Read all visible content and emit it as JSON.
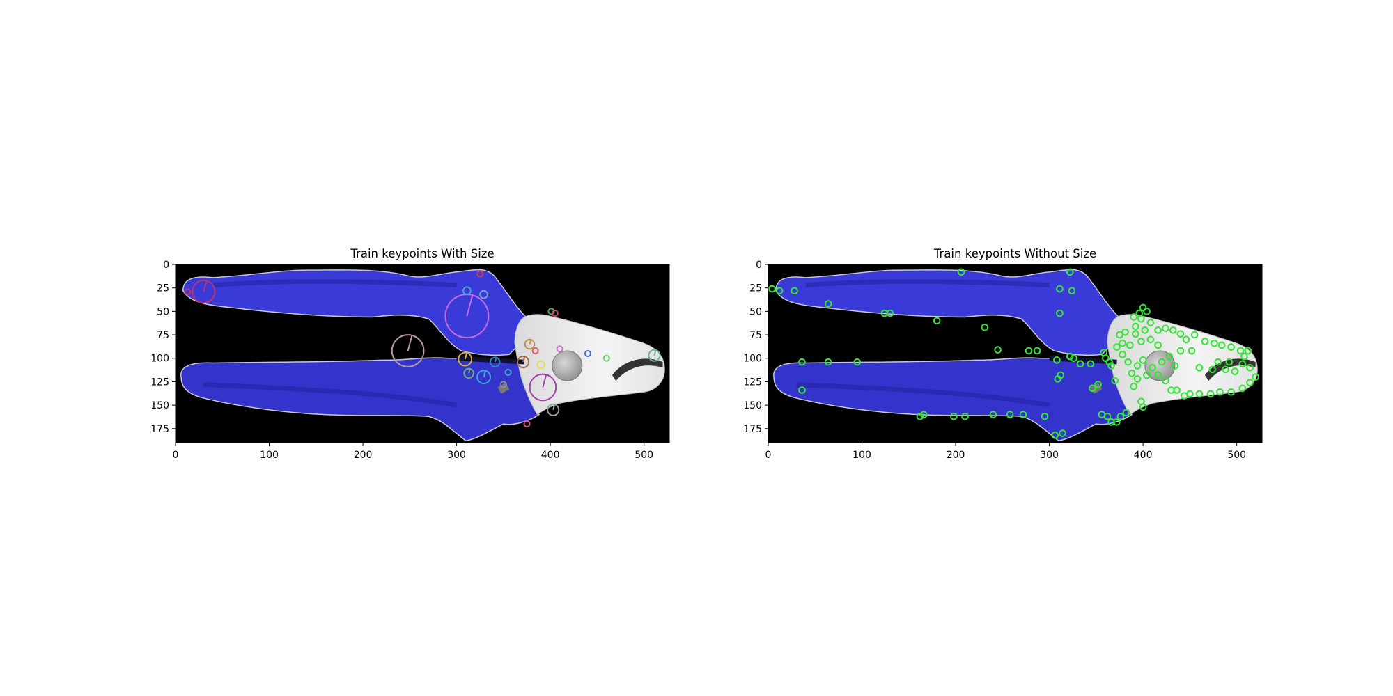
{
  "chart_data": [
    {
      "type": "image",
      "title": "Train keypoints With Size",
      "xlim": [
        0,
        527
      ],
      "ylim": [
        190,
        0
      ],
      "x_ticks": [
        0,
        100,
        200,
        300,
        400,
        500
      ],
      "y_ticks": [
        0,
        25,
        50,
        75,
        100,
        125,
        150,
        175
      ],
      "keypoint_style": "rich (size + orientation)",
      "keypoints": [
        {
          "x": 30,
          "y": 29,
          "r": 12,
          "color": "#c0306a"
        },
        {
          "x": 13,
          "y": 29,
          "r": 3,
          "color": "#c0306a"
        },
        {
          "x": 311,
          "y": 55,
          "r": 23,
          "color": "#c86be6"
        },
        {
          "x": 329,
          "y": 32,
          "r": 4,
          "color": "#7aa0c8"
        },
        {
          "x": 311,
          "y": 28,
          "r": 4,
          "color": "#4aa0d0"
        },
        {
          "x": 325,
          "y": 10,
          "r": 3,
          "color": "#d04040"
        },
        {
          "x": 248,
          "y": 92,
          "r": 17,
          "color": "#b89898"
        },
        {
          "x": 309,
          "y": 101,
          "r": 7,
          "color": "#d8b040"
        },
        {
          "x": 341,
          "y": 104,
          "r": 5,
          "color": "#3080c8"
        },
        {
          "x": 313,
          "y": 116,
          "r": 5,
          "color": "#70b070"
        },
        {
          "x": 329,
          "y": 120,
          "r": 7,
          "color": "#40a8e0"
        },
        {
          "x": 392,
          "y": 131,
          "r": 14,
          "color": "#a040a8"
        },
        {
          "x": 403,
          "y": 155,
          "r": 6,
          "color": "#90a8a0"
        },
        {
          "x": 378,
          "y": 85,
          "r": 5,
          "color": "#c89050"
        },
        {
          "x": 371,
          "y": 104,
          "r": 6,
          "color": "#a07040"
        },
        {
          "x": 390,
          "y": 107,
          "r": 4,
          "color": "#e0e060"
        },
        {
          "x": 511,
          "y": 97,
          "r": 6,
          "color": "#70b0a0"
        },
        {
          "x": 384,
          "y": 92,
          "r": 3,
          "color": "#e06060"
        },
        {
          "x": 401,
          "y": 50,
          "r": 3,
          "color": "#60a060"
        },
        {
          "x": 405,
          "y": 52,
          "r": 3,
          "color": "#d04060"
        },
        {
          "x": 355,
          "y": 115,
          "r": 3,
          "color": "#40a0d0"
        },
        {
          "x": 410,
          "y": 90,
          "r": 3,
          "color": "#d070d0"
        },
        {
          "x": 440,
          "y": 95,
          "r": 3,
          "color": "#4070d0"
        },
        {
          "x": 460,
          "y": 100,
          "r": 3,
          "color": "#70d070"
        },
        {
          "x": 375,
          "y": 170,
          "r": 3,
          "color": "#d05090"
        },
        {
          "x": 350,
          "y": 128,
          "r": 3,
          "color": "#909090"
        }
      ]
    },
    {
      "type": "image",
      "title": "Train keypoints Without Size",
      "xlim": [
        0,
        527
      ],
      "ylim": [
        190,
        0
      ],
      "x_ticks": [
        0,
        100,
        200,
        300,
        400,
        500
      ],
      "y_ticks": [
        0,
        25,
        50,
        75,
        100,
        125,
        150,
        175
      ],
      "keypoint_style": "fixed-size circles",
      "keypoint_color": "#33e633",
      "keypoints": [
        [
          4,
          26
        ],
        [
          12,
          28
        ],
        [
          28,
          28
        ],
        [
          64,
          42
        ],
        [
          36,
          104
        ],
        [
          36,
          134
        ],
        [
          64,
          104
        ],
        [
          95,
          104
        ],
        [
          124,
          52
        ],
        [
          130,
          52
        ],
        [
          180,
          60
        ],
        [
          206,
          8
        ],
        [
          231,
          67
        ],
        [
          245,
          91
        ],
        [
          278,
          92
        ],
        [
          287,
          92
        ],
        [
          308,
          102
        ],
        [
          312,
          118
        ],
        [
          309,
          122
        ],
        [
          311,
          52
        ],
        [
          311,
          26
        ],
        [
          324,
          28
        ],
        [
          322,
          8
        ],
        [
          322,
          98
        ],
        [
          326,
          100
        ],
        [
          333,
          106
        ],
        [
          344,
          106
        ],
        [
          358,
          94
        ],
        [
          366,
          108
        ],
        [
          346,
          132
        ],
        [
          352,
          128
        ],
        [
          370,
          124
        ],
        [
          306,
          182
        ],
        [
          314,
          180
        ],
        [
          295,
          162
        ],
        [
          272,
          160
        ],
        [
          258,
          160
        ],
        [
          240,
          160
        ],
        [
          210,
          162
        ],
        [
          198,
          162
        ],
        [
          166,
          160
        ],
        [
          162,
          162
        ],
        [
          372,
          88
        ],
        [
          378,
          84
        ],
        [
          375,
          75
        ],
        [
          381,
          72
        ],
        [
          392,
          66
        ],
        [
          390,
          56
        ],
        [
          396,
          52
        ],
        [
          400,
          46
        ],
        [
          404,
          50
        ],
        [
          398,
          58
        ],
        [
          408,
          62
        ],
        [
          402,
          70
        ],
        [
          416,
          70
        ],
        [
          424,
          68
        ],
        [
          432,
          70
        ],
        [
          440,
          74
        ],
        [
          446,
          80
        ],
        [
          455,
          75
        ],
        [
          466,
          82
        ],
        [
          476,
          84
        ],
        [
          484,
          86
        ],
        [
          494,
          88
        ],
        [
          504,
          92
        ],
        [
          512,
          92
        ],
        [
          508,
          98
        ],
        [
          506,
          106
        ],
        [
          514,
          110
        ],
        [
          520,
          120
        ],
        [
          514,
          126
        ],
        [
          506,
          132
        ],
        [
          494,
          136
        ],
        [
          482,
          136
        ],
        [
          472,
          138
        ],
        [
          460,
          138
        ],
        [
          450,
          138
        ],
        [
          444,
          140
        ],
        [
          436,
          134
        ],
        [
          430,
          134
        ],
        [
          424,
          124
        ],
        [
          416,
          118
        ],
        [
          410,
          110
        ],
        [
          404,
          118
        ],
        [
          420,
          104
        ],
        [
          428,
          98
        ],
        [
          416,
          86
        ],
        [
          408,
          80
        ],
        [
          398,
          82
        ],
        [
          392,
          74
        ],
        [
          386,
          86
        ],
        [
          378,
          96
        ],
        [
          384,
          104
        ],
        [
          394,
          108
        ],
        [
          400,
          102
        ],
        [
          388,
          116
        ],
        [
          394,
          122
        ],
        [
          390,
          130
        ],
        [
          398,
          146
        ],
        [
          400,
          152
        ],
        [
          372,
          168
        ],
        [
          366,
          168
        ],
        [
          362,
          162
        ],
        [
          356,
          160
        ],
        [
          376,
          162
        ],
        [
          382,
          158
        ],
        [
          460,
          110
        ],
        [
          474,
          112
        ],
        [
          488,
          112
        ],
        [
          498,
          114
        ],
        [
          480,
          104
        ],
        [
          492,
          104
        ],
        [
          360,
          100
        ],
        [
          364,
          104
        ],
        [
          434,
          108
        ],
        [
          440,
          92
        ],
        [
          452,
          92
        ]
      ]
    }
  ]
}
